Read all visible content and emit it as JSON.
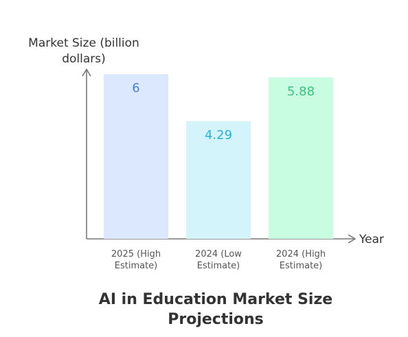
{
  "chart_data": {
    "type": "bar",
    "title": "AI in Education Market Size Projections",
    "x_label": "Year",
    "y_label": "Market Size (billion dollars)",
    "categories": [
      "2025 (High Estimate)",
      "2024 (Low Estimate)",
      "2024 (High Estimate)"
    ],
    "values": [
      6,
      4.29,
      5.88
    ],
    "colors": [
      "#dbe8fd",
      "#d4f4fb",
      "#c9fde1"
    ],
    "label_colors": [
      "#4a7fd6",
      "#2ab0d8",
      "#38c47d"
    ],
    "ylim": [
      0,
      6
    ]
  }
}
